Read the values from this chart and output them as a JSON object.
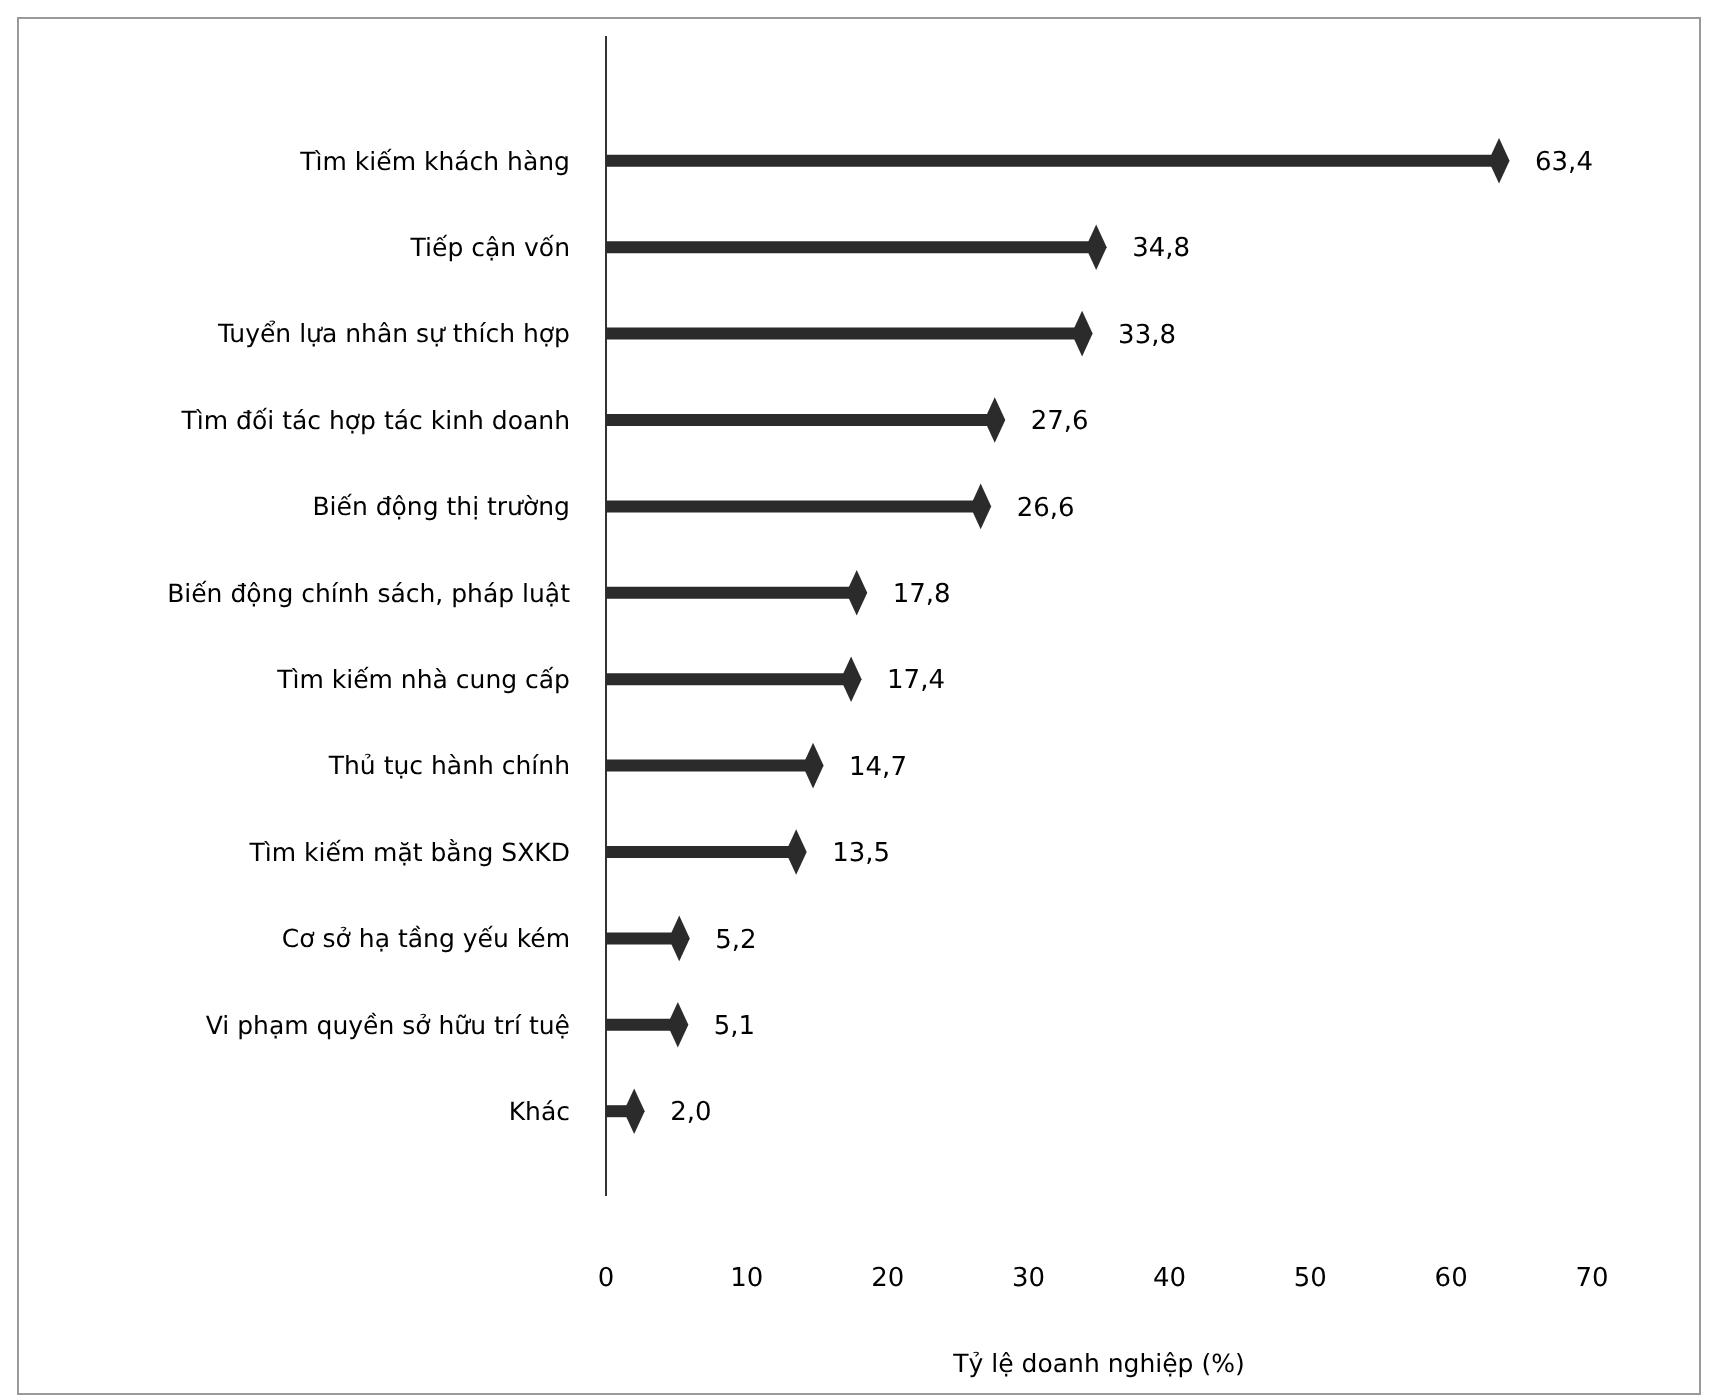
{
  "chart_data": {
    "type": "lollipop",
    "orientation": "horizontal",
    "xlabel": "Tỷ lệ doanh nghiệp (%)",
    "categories": [
      "Tìm kiếm khách hàng",
      "Tiếp cận vốn",
      "Tuyển lựa nhân sự thích hợp",
      "Tìm đối tác hợp tác kinh doanh",
      "Biến động thị trường",
      "Biến động chính sách, pháp luật",
      "Tìm kiếm nhà cung cấp",
      "Thủ tục hành chính",
      "Tìm kiếm mặt bằng SXKD",
      "Cơ sở hạ tầng yếu kém",
      "Vi phạm quyền sở hữu trí tuệ",
      "Khác"
    ],
    "values": [
      63.4,
      34.8,
      33.8,
      27.6,
      26.6,
      17.8,
      17.4,
      14.7,
      13.5,
      5.2,
      5.1,
      2.0
    ],
    "value_labels": [
      "63,4",
      "34,8",
      "33,8",
      "27,6",
      "26,6",
      "17,8",
      "17,4",
      "14,7",
      "13,5",
      "5,2",
      "5,1",
      "2,0"
    ],
    "color": "#2b2b2b",
    "marker": "diamond",
    "xlim": [
      0,
      70
    ],
    "xticks": [
      0,
      10,
      20,
      30,
      40,
      50,
      60,
      70
    ],
    "grid": false
  }
}
